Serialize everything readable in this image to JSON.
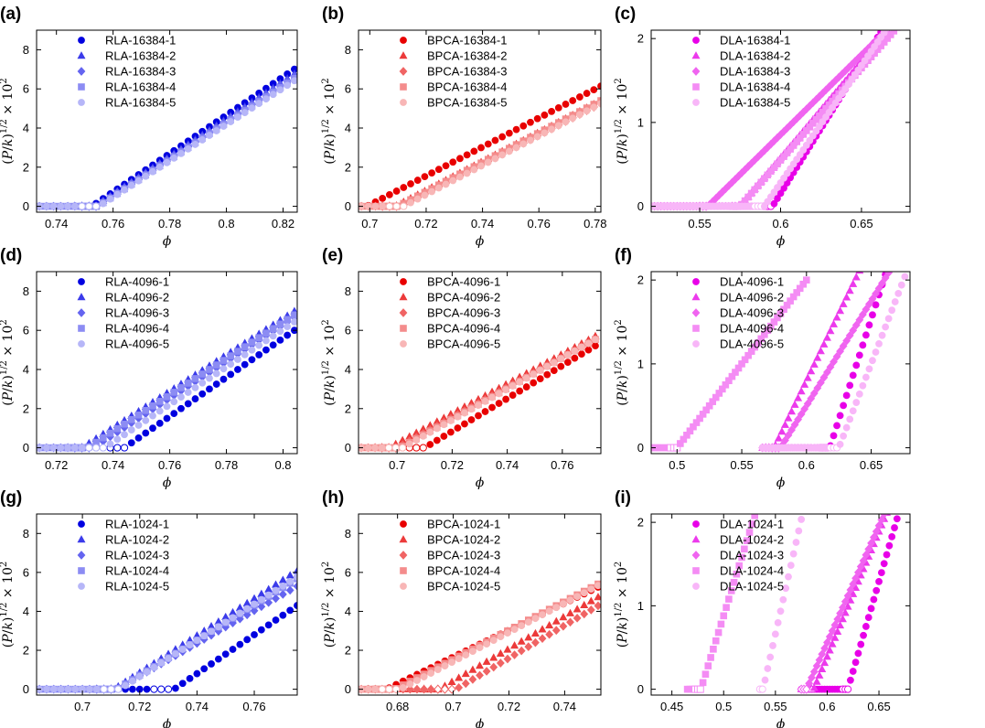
{
  "figure": {
    "y_axis_label": {
      "open": "(",
      "P": "P",
      "slash": "/",
      "k": "k",
      "close": ")",
      "exp": "1/2",
      "times": "× 10",
      "pow": "2"
    },
    "x_axis_label": "ϕ"
  },
  "chart_data": [
    {
      "panel": "(a)",
      "type": "scatter",
      "family": "RLA",
      "xlim": [
        0.733,
        0.825
      ],
      "ylim": [
        -0.3,
        9
      ],
      "xticks": [
        0.74,
        0.76,
        0.78,
        0.8,
        0.82
      ],
      "xtick_labels": [
        "0.74",
        "0.76",
        "0.78",
        "0.8",
        "0.82"
      ],
      "yticks": [
        0,
        2,
        4,
        6,
        8
      ],
      "ytick_labels": [
        "0",
        "2",
        "4",
        "6",
        "8"
      ],
      "legend": [
        "RLA-16384-1",
        "RLA-16384-2",
        "RLA-16384-3",
        "RLA-16384-4",
        "RLA-16384-5"
      ],
      "colors": [
        "#0000e0",
        "#3b3bea",
        "#6464f0",
        "#8c8cf3",
        "#b6b6f8"
      ],
      "series": [
        {
          "name": "RLA-16384-1",
          "phi_c": 0.7525,
          "slope": 98.0,
          "x_start": 0.734,
          "step": 0.0025,
          "x_end": 0.825
        },
        {
          "name": "RLA-16384-2",
          "phi_c": 0.7535,
          "slope": 96.0,
          "x_start": 0.734,
          "step": 0.0025,
          "x_end": 0.825
        },
        {
          "name": "RLA-16384-3",
          "phi_c": 0.754,
          "slope": 95.0,
          "x_start": 0.734,
          "step": 0.0025,
          "x_end": 0.825
        },
        {
          "name": "RLA-16384-4",
          "phi_c": 0.7545,
          "slope": 94.0,
          "x_start": 0.734,
          "step": 0.0025,
          "x_end": 0.825
        },
        {
          "name": "RLA-16384-5",
          "phi_c": 0.755,
          "slope": 93.0,
          "x_start": 0.734,
          "step": 0.0025,
          "x_end": 0.825
        }
      ]
    },
    {
      "panel": "(b)",
      "type": "scatter",
      "family": "BPCA",
      "xlim": [
        0.696,
        0.782
      ],
      "ylim": [
        -0.3,
        9
      ],
      "xticks": [
        0.7,
        0.72,
        0.74,
        0.76,
        0.78
      ],
      "xtick_labels": [
        "0.7",
        "0.72",
        "0.74",
        "0.76",
        "0.78"
      ],
      "yticks": [
        0,
        2,
        4,
        6,
        8
      ],
      "ytick_labels": [
        "0",
        "2",
        "4",
        "6",
        "8"
      ],
      "legend": [
        "BPCA-16384-1",
        "BPCA-16384-2",
        "BPCA-16384-3",
        "BPCA-16384-4",
        "BPCA-16384-5"
      ],
      "colors": [
        "#e80000",
        "#ec3a3a",
        "#f06464",
        "#f48c8c",
        "#f8b6b6"
      ],
      "series": [
        {
          "name": "BPCA-16384-1",
          "phi_c": 0.699,
          "slope": 74.0,
          "x_start": 0.697,
          "step": 0.0025,
          "x_end": 0.782
        },
        {
          "name": "BPCA-16384-2",
          "phi_c": 0.709,
          "slope": 74.0,
          "x_start": 0.697,
          "step": 0.0025,
          "x_end": 0.782
        },
        {
          "name": "BPCA-16384-3",
          "phi_c": 0.711,
          "slope": 74.0,
          "x_start": 0.697,
          "step": 0.0025,
          "x_end": 0.782
        },
        {
          "name": "BPCA-16384-4",
          "phi_c": 0.71,
          "slope": 75.0,
          "x_start": 0.697,
          "step": 0.0025,
          "x_end": 0.782
        },
        {
          "name": "BPCA-16384-5",
          "phi_c": 0.712,
          "slope": 75.0,
          "x_start": 0.697,
          "step": 0.0025,
          "x_end": 0.782
        }
      ]
    },
    {
      "panel": "(c)",
      "type": "scatter",
      "family": "DLA",
      "xlim": [
        0.52,
        0.68
      ],
      "ylim": [
        -0.07,
        2.1
      ],
      "xticks": [
        0.55,
        0.6,
        0.65
      ],
      "xtick_labels": [
        "0.55",
        "0.6",
        "0.65"
      ],
      "yticks": [
        0,
        1,
        2
      ],
      "ytick_labels": [
        "0",
        "1",
        "2"
      ],
      "legend": [
        "DLA-16384-1",
        "DLA-16384-2",
        "DLA-16384-3",
        "DLA-16384-4",
        "DLA-16384-5"
      ],
      "colors": [
        "#e800e8",
        "#ec3aec",
        "#f064f0",
        "#f48cf4",
        "#f8b6f8"
      ],
      "series": [
        {
          "name": "DLA-16384-1",
          "phi_c": 0.595,
          "slope": 31.0,
          "x_start": 0.52,
          "step": 0.002,
          "x_end": 0.68
        },
        {
          "name": "DLA-16384-2",
          "phi_c": 0.575,
          "slope": 23.0,
          "x_start": 0.52,
          "step": 0.002,
          "x_end": 0.68
        },
        {
          "name": "DLA-16384-3",
          "phi_c": 0.555,
          "slope": 19.0,
          "x_start": 0.52,
          "step": 0.002,
          "x_end": 0.68
        },
        {
          "name": "DLA-16384-4",
          "phi_c": 0.575,
          "slope": 22.0,
          "x_start": 0.52,
          "step": 0.002,
          "x_end": 0.68
        },
        {
          "name": "DLA-16384-5",
          "phi_c": 0.59,
          "slope": 28.0,
          "x_start": 0.52,
          "step": 0.002,
          "x_end": 0.68
        }
      ]
    },
    {
      "panel": "(d)",
      "type": "scatter",
      "family": "RLA",
      "xlim": [
        0.713,
        0.805
      ],
      "ylim": [
        -0.3,
        9
      ],
      "xticks": [
        0.72,
        0.74,
        0.76,
        0.78,
        0.8
      ],
      "xtick_labels": [
        "0.72",
        "0.74",
        "0.76",
        "0.78",
        "0.8"
      ],
      "yticks": [
        0,
        2,
        4,
        6,
        8
      ],
      "ytick_labels": [
        "0",
        "2",
        "4",
        "6",
        "8"
      ],
      "legend": [
        "RLA-4096-1",
        "RLA-4096-2",
        "RLA-4096-3",
        "RLA-4096-4",
        "RLA-4096-5"
      ],
      "colors": [
        "#0000e0",
        "#3b3bea",
        "#6464f0",
        "#8c8cf3",
        "#b6b6f8"
      ],
      "series": [
        {
          "name": "RLA-4096-1",
          "phi_c": 0.744,
          "slope": 100.0,
          "x_start": 0.714,
          "step": 0.0025,
          "x_end": 0.805
        },
        {
          "name": "RLA-4096-2",
          "phi_c": 0.729,
          "slope": 93.0,
          "x_start": 0.714,
          "step": 0.0025,
          "x_end": 0.805
        },
        {
          "name": "RLA-4096-3",
          "phi_c": 0.733,
          "slope": 94.0,
          "x_start": 0.714,
          "step": 0.0025,
          "x_end": 0.805
        },
        {
          "name": "RLA-4096-4",
          "phi_c": 0.731,
          "slope": 93.0,
          "x_start": 0.714,
          "step": 0.0025,
          "x_end": 0.805
        },
        {
          "name": "RLA-4096-5",
          "phi_c": 0.737,
          "slope": 96.0,
          "x_start": 0.714,
          "step": 0.0025,
          "x_end": 0.805
        }
      ]
    },
    {
      "panel": "(e)",
      "type": "scatter",
      "family": "BPCA",
      "xlim": [
        0.686,
        0.774
      ],
      "ylim": [
        -0.3,
        9
      ],
      "xticks": [
        0.7,
        0.72,
        0.74,
        0.76
      ],
      "xtick_labels": [
        "0.7",
        "0.72",
        "0.74",
        "0.76"
      ],
      "yticks": [
        0,
        2,
        4,
        6,
        8
      ],
      "ytick_labels": [
        "0",
        "2",
        "4",
        "6",
        "8"
      ],
      "legend": [
        "BPCA-4096-1",
        "BPCA-4096-2",
        "BPCA-4096-3",
        "BPCA-4096-4",
        "BPCA-4096-5"
      ],
      "colors": [
        "#e80000",
        "#ec3a3a",
        "#f06464",
        "#f48c8c",
        "#f8b6b6"
      ],
      "series": [
        {
          "name": "BPCA-4096-1",
          "phi_c": 0.71,
          "slope": 84.0,
          "x_start": 0.687,
          "step": 0.0025,
          "x_end": 0.774
        },
        {
          "name": "BPCA-4096-2",
          "phi_c": 0.697,
          "slope": 76.0,
          "x_start": 0.687,
          "step": 0.0025,
          "x_end": 0.774
        },
        {
          "name": "BPCA-4096-3",
          "phi_c": 0.7,
          "slope": 77.0,
          "x_start": 0.687,
          "step": 0.0025,
          "x_end": 0.774
        },
        {
          "name": "BPCA-4096-4",
          "phi_c": 0.701,
          "slope": 78.0,
          "x_start": 0.687,
          "step": 0.0025,
          "x_end": 0.774
        },
        {
          "name": "BPCA-4096-5",
          "phi_c": 0.702,
          "slope": 79.0,
          "x_start": 0.687,
          "step": 0.0025,
          "x_end": 0.774
        }
      ]
    },
    {
      "panel": "(f)",
      "type": "scatter",
      "family": "DLA",
      "xlim": [
        0.48,
        0.68
      ],
      "ylim": [
        -0.07,
        2.1
      ],
      "xticks": [
        0.5,
        0.55,
        0.6,
        0.65
      ],
      "xtick_labels": [
        "0.5",
        "0.55",
        "0.6",
        "0.65"
      ],
      "yticks": [
        0,
        1,
        2
      ],
      "ytick_labels": [
        "0",
        "1",
        "2"
      ],
      "legend": [
        "DLA-4096-1",
        "DLA-4096-2",
        "DLA-4096-3",
        "DLA-4096-4",
        "DLA-4096-5"
      ],
      "colors": [
        "#e800e8",
        "#ec3aec",
        "#f064f0",
        "#f48cf4",
        "#f8b6f8"
      ],
      "series": [
        {
          "name": "DLA-4096-1",
          "phi_c": 0.618,
          "slope": 48.0,
          "x_start": 0.566,
          "step": 0.0025,
          "x_end": 0.68
        },
        {
          "name": "DLA-4096-2",
          "phi_c": 0.575,
          "slope": 32.0,
          "x_start": 0.566,
          "step": 0.0025,
          "x_end": 0.68
        },
        {
          "name": "DLA-4096-3",
          "phi_c": 0.58,
          "slope": 25.0,
          "x_start": 0.566,
          "step": 0.0025,
          "x_end": 0.68
        },
        {
          "name": "DLA-4096-4",
          "phi_c": 0.5,
          "slope": 20.0,
          "x_start": 0.48,
          "step": 0.0025,
          "x_end": 0.6
        },
        {
          "name": "DLA-4096-5",
          "phi_c": 0.625,
          "slope": 40.0,
          "x_start": 0.566,
          "step": 0.0025,
          "x_end": 0.68
        }
      ]
    },
    {
      "panel": "(g)",
      "type": "scatter",
      "family": "RLA",
      "xlim": [
        0.684,
        0.775
      ],
      "ylim": [
        -0.3,
        9
      ],
      "xticks": [
        0.7,
        0.72,
        0.74,
        0.76
      ],
      "xtick_labels": [
        "0.7",
        "0.72",
        "0.74",
        "0.76"
      ],
      "yticks": [
        0,
        2,
        4,
        6,
        8
      ],
      "ytick_labels": [
        "0",
        "2",
        "4",
        "6",
        "8"
      ],
      "legend": [
        "RLA-1024-1",
        "RLA-1024-2",
        "RLA-1024-3",
        "RLA-1024-4",
        "RLA-1024-5"
      ],
      "colors": [
        "#0000e0",
        "#3b3bea",
        "#6464f0",
        "#8c8cf3",
        "#b6b6f8"
      ],
      "series": [
        {
          "name": "RLA-1024-1",
          "phi_c": 0.732,
          "slope": 100.0,
          "x_start": 0.685,
          "step": 0.0025,
          "x_end": 0.775
        },
        {
          "name": "RLA-1024-2",
          "phi_c": 0.711,
          "slope": 95.0,
          "x_start": 0.685,
          "step": 0.0025,
          "x_end": 0.775
        },
        {
          "name": "RLA-1024-3",
          "phi_c": 0.712,
          "slope": 84.0,
          "x_start": 0.685,
          "step": 0.0025,
          "x_end": 0.775
        },
        {
          "name": "RLA-1024-4",
          "phi_c": 0.712,
          "slope": 90.0,
          "x_start": 0.685,
          "step": 0.0025,
          "x_end": 0.775
        },
        {
          "name": "RLA-1024-5",
          "phi_c": 0.713,
          "slope": 93.0,
          "x_start": 0.685,
          "step": 0.0025,
          "x_end": 0.775
        }
      ]
    },
    {
      "panel": "(h)",
      "type": "scatter",
      "family": "BPCA",
      "xlim": [
        0.666,
        0.753
      ],
      "ylim": [
        -0.3,
        9
      ],
      "xticks": [
        0.68,
        0.7,
        0.72,
        0.74
      ],
      "xtick_labels": [
        "0.68",
        "0.7",
        "0.72",
        "0.74"
      ],
      "yticks": [
        0,
        2,
        4,
        6,
        8
      ],
      "ytick_labels": [
        "0",
        "2",
        "4",
        "6",
        "8"
      ],
      "legend": [
        "BPCA-1024-1",
        "BPCA-1024-2",
        "BPCA-1024-3",
        "BPCA-1024-4",
        "BPCA-1024-5"
      ],
      "colors": [
        "#e80000",
        "#ec3a3a",
        "#f06464",
        "#f48c8c",
        "#f8b6b6"
      ],
      "series": [
        {
          "name": "BPCA-1024-1",
          "phi_c": 0.676,
          "slope": 69.0,
          "x_start": 0.667,
          "step": 0.0025,
          "x_end": 0.753
        },
        {
          "name": "BPCA-1024-2",
          "phi_c": 0.695,
          "slope": 83.0,
          "x_start": 0.667,
          "step": 0.0025,
          "x_end": 0.753
        },
        {
          "name": "BPCA-1024-3",
          "phi_c": 0.701,
          "slope": 84.0,
          "x_start": 0.667,
          "step": 0.0025,
          "x_end": 0.753
        },
        {
          "name": "BPCA-1024-4",
          "phi_c": 0.679,
          "slope": 74.0,
          "x_start": 0.667,
          "step": 0.0025,
          "x_end": 0.753
        },
        {
          "name": "BPCA-1024-5",
          "phi_c": 0.681,
          "slope": 75.0,
          "x_start": 0.667,
          "step": 0.0025,
          "x_end": 0.753
        }
      ]
    },
    {
      "panel": "(i)",
      "type": "scatter",
      "family": "DLA",
      "xlim": [
        0.43,
        0.68
      ],
      "ylim": [
        -0.07,
        2.1
      ],
      "xticks": [
        0.45,
        0.5,
        0.55,
        0.6,
        0.65
      ],
      "xtick_labels": [
        "0.45",
        "0.5",
        "0.55",
        "0.6",
        "0.65"
      ],
      "yticks": [
        0,
        1,
        2
      ],
      "ytick_labels": [
        "0",
        "1",
        "2"
      ],
      "legend": [
        "DLA-1024-1",
        "DLA-1024-2",
        "DLA-1024-3",
        "DLA-1024-4",
        "DLA-1024-5"
      ],
      "colors": [
        "#e800e8",
        "#ec3aec",
        "#f064f0",
        "#f48cf4",
        "#f8b6f8"
      ],
      "series": [
        {
          "name": "DLA-1024-1",
          "phi_c": 0.62,
          "slope": 43.0,
          "x_start": 0.575,
          "step": 0.0025,
          "x_end": 0.68
        },
        {
          "name": "DLA-1024-2",
          "phi_c": 0.587,
          "slope": 30.0,
          "x_start": 0.575,
          "step": 0.0025,
          "x_end": 0.68
        },
        {
          "name": "DLA-1024-3",
          "phi_c": 0.58,
          "slope": 28.0,
          "x_start": 0.575,
          "step": 0.0025,
          "x_end": 0.68
        },
        {
          "name": "DLA-1024-4",
          "phi_c": 0.478,
          "slope": 40.0,
          "x_start": 0.465,
          "step": 0.0025,
          "x_end": 0.56
        },
        {
          "name": "DLA-1024-5",
          "phi_c": 0.538,
          "slope": 55.0,
          "x_start": 0.535,
          "step": 0.0025,
          "x_end": 0.6
        }
      ]
    }
  ]
}
